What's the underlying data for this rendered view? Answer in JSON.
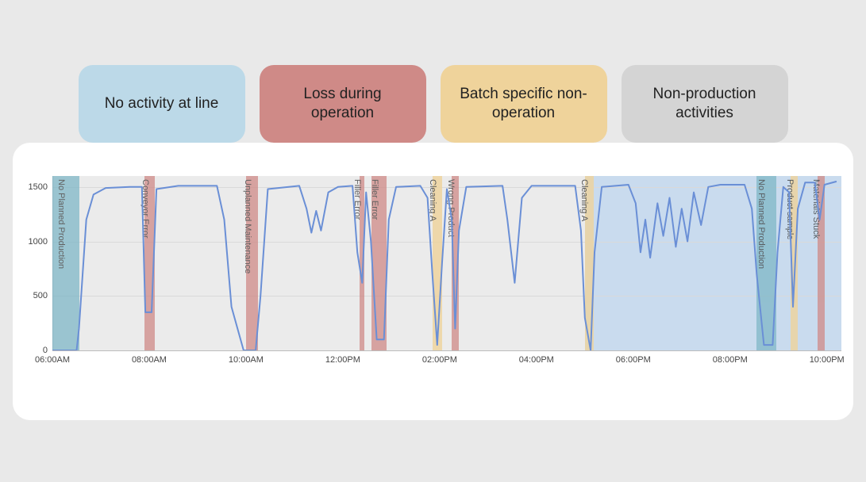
{
  "legend": {
    "items": [
      {
        "label": "No activity at line",
        "color": "#bcd9e8"
      },
      {
        "label": "Loss during operation",
        "color": "#cf8a87"
      },
      {
        "label": "Batch specific non-operation",
        "color": "#efd39b"
      },
      {
        "label": "Non-production activities",
        "color": "#d4d4d4"
      }
    ],
    "font_size": 19,
    "border_radius": 18
  },
  "chart": {
    "type": "line-with-bands",
    "background_color": "#ffffff",
    "panel_border_radius": 22,
    "line_color": "#6a8fd6",
    "line_width": 2,
    "grid_color": "#d9d9d9",
    "axis_color": "#bcbcbc",
    "y": {
      "min": 0,
      "max": 1600,
      "ticks": [
        0,
        500,
        1000,
        1500
      ],
      "label_fontsize": 11
    },
    "x": {
      "domain_hours": [
        6,
        22.3
      ],
      "ticks": [
        {
          "h": 6,
          "label": "06:00AM"
        },
        {
          "h": 8,
          "label": "08:00AM"
        },
        {
          "h": 10,
          "label": "10:00AM"
        },
        {
          "h": 12,
          "label": "12:00PM"
        },
        {
          "h": 14,
          "label": "02:00PM"
        },
        {
          "h": 16,
          "label": "04:00PM"
        },
        {
          "h": 18,
          "label": "06:00PM"
        },
        {
          "h": 20,
          "label": "08:00PM"
        },
        {
          "h": 22,
          "label": "10:00PM"
        }
      ],
      "label_fontsize": 11
    },
    "batches_background": [
      {
        "start": 6.0,
        "end": 11.1,
        "color": "#ebebeb"
      },
      {
        "start": 11.1,
        "end": 17.0,
        "color": "#ebebeb"
      },
      {
        "start": 17.0,
        "end": 22.3,
        "color": "#c9dbee"
      }
    ],
    "bands": [
      {
        "start": 6.0,
        "end": 6.55,
        "label": "No Planned Production",
        "color": "#7fb7c7",
        "opacity": 0.75
      },
      {
        "start": 7.9,
        "end": 8.12,
        "label": "Conveyor Error",
        "color": "#cf8a87",
        "opacity": 0.75
      },
      {
        "start": 10.0,
        "end": 10.25,
        "label": "Unplanned Maintenance",
        "color": "#cf8a87",
        "opacity": 0.75
      },
      {
        "start": 12.35,
        "end": 12.45,
        "label": "Filler Error",
        "color": "#cf8a87",
        "opacity": 0.75
      },
      {
        "start": 12.6,
        "end": 12.9,
        "label": "Filler Error",
        "color": "#cf8a87",
        "opacity": 0.75
      },
      {
        "start": 13.85,
        "end": 14.05,
        "label": "Cleaning A",
        "color": "#efd39b",
        "opacity": 0.8
      },
      {
        "start": 14.25,
        "end": 14.4,
        "label": "Wrong Product",
        "color": "#cf8a87",
        "opacity": 0.75
      },
      {
        "start": 17.0,
        "end": 17.18,
        "label": "Cleaning A",
        "color": "#efd39b",
        "opacity": 0.8
      },
      {
        "start": 20.55,
        "end": 20.95,
        "label": "No Planned Production",
        "color": "#7fb7c7",
        "opacity": 0.75
      },
      {
        "start": 21.25,
        "end": 21.4,
        "label": "Product sample",
        "color": "#efd39b",
        "opacity": 0.8
      },
      {
        "start": 21.8,
        "end": 21.95,
        "label": "Materials Stuck",
        "color": "#cf8a87",
        "opacity": 0.75
      }
    ],
    "series": [
      {
        "h": 6.0,
        "v": 0
      },
      {
        "h": 6.5,
        "v": 0
      },
      {
        "h": 6.55,
        "v": 200
      },
      {
        "h": 6.7,
        "v": 1200
      },
      {
        "h": 6.85,
        "v": 1430
      },
      {
        "h": 7.1,
        "v": 1490
      },
      {
        "h": 7.6,
        "v": 1500
      },
      {
        "h": 7.85,
        "v": 1500
      },
      {
        "h": 7.92,
        "v": 350
      },
      {
        "h": 8.05,
        "v": 350
      },
      {
        "h": 8.15,
        "v": 1480
      },
      {
        "h": 8.6,
        "v": 1510
      },
      {
        "h": 9.4,
        "v": 1510
      },
      {
        "h": 9.55,
        "v": 1200
      },
      {
        "h": 9.7,
        "v": 400
      },
      {
        "h": 9.95,
        "v": 0
      },
      {
        "h": 10.2,
        "v": 0
      },
      {
        "h": 10.3,
        "v": 500
      },
      {
        "h": 10.45,
        "v": 1480
      },
      {
        "h": 11.1,
        "v": 1510
      },
      {
        "h": 11.25,
        "v": 1300
      },
      {
        "h": 11.35,
        "v": 1080
      },
      {
        "h": 11.45,
        "v": 1280
      },
      {
        "h": 11.55,
        "v": 1100
      },
      {
        "h": 11.7,
        "v": 1450
      },
      {
        "h": 11.9,
        "v": 1500
      },
      {
        "h": 12.2,
        "v": 1510
      },
      {
        "h": 12.3,
        "v": 900
      },
      {
        "h": 12.4,
        "v": 620
      },
      {
        "h": 12.48,
        "v": 1450
      },
      {
        "h": 12.58,
        "v": 1000
      },
      {
        "h": 12.7,
        "v": 100
      },
      {
        "h": 12.85,
        "v": 100
      },
      {
        "h": 12.95,
        "v": 1200
      },
      {
        "h": 13.1,
        "v": 1500
      },
      {
        "h": 13.6,
        "v": 1510
      },
      {
        "h": 13.75,
        "v": 1400
      },
      {
        "h": 13.85,
        "v": 700
      },
      {
        "h": 13.95,
        "v": 50
      },
      {
        "h": 14.05,
        "v": 800
      },
      {
        "h": 14.15,
        "v": 1480
      },
      {
        "h": 14.25,
        "v": 1200
      },
      {
        "h": 14.32,
        "v": 200
      },
      {
        "h": 14.4,
        "v": 1100
      },
      {
        "h": 14.55,
        "v": 1500
      },
      {
        "h": 15.3,
        "v": 1510
      },
      {
        "h": 15.4,
        "v": 1200
      },
      {
        "h": 15.55,
        "v": 620
      },
      {
        "h": 15.7,
        "v": 1400
      },
      {
        "h": 15.9,
        "v": 1510
      },
      {
        "h": 16.8,
        "v": 1510
      },
      {
        "h": 16.92,
        "v": 1100
      },
      {
        "h": 17.0,
        "v": 300
      },
      {
        "h": 17.12,
        "v": 0
      },
      {
        "h": 17.2,
        "v": 900
      },
      {
        "h": 17.35,
        "v": 1500
      },
      {
        "h": 17.9,
        "v": 1520
      },
      {
        "h": 18.05,
        "v": 1350
      },
      {
        "h": 18.15,
        "v": 900
      },
      {
        "h": 18.25,
        "v": 1200
      },
      {
        "h": 18.35,
        "v": 850
      },
      {
        "h": 18.5,
        "v": 1350
      },
      {
        "h": 18.62,
        "v": 1050
      },
      {
        "h": 18.75,
        "v": 1400
      },
      {
        "h": 18.88,
        "v": 950
      },
      {
        "h": 19.0,
        "v": 1300
      },
      {
        "h": 19.12,
        "v": 1000
      },
      {
        "h": 19.25,
        "v": 1450
      },
      {
        "h": 19.4,
        "v": 1150
      },
      {
        "h": 19.55,
        "v": 1500
      },
      {
        "h": 19.8,
        "v": 1520
      },
      {
        "h": 20.3,
        "v": 1520
      },
      {
        "h": 20.45,
        "v": 1300
      },
      {
        "h": 20.55,
        "v": 700
      },
      {
        "h": 20.7,
        "v": 50
      },
      {
        "h": 20.88,
        "v": 50
      },
      {
        "h": 20.98,
        "v": 900
      },
      {
        "h": 21.1,
        "v": 1500
      },
      {
        "h": 21.22,
        "v": 1450
      },
      {
        "h": 21.3,
        "v": 400
      },
      {
        "h": 21.4,
        "v": 1300
      },
      {
        "h": 21.55,
        "v": 1540
      },
      {
        "h": 21.75,
        "v": 1540
      },
      {
        "h": 21.85,
        "v": 1200
      },
      {
        "h": 21.95,
        "v": 1520
      },
      {
        "h": 22.2,
        "v": 1550
      }
    ]
  }
}
